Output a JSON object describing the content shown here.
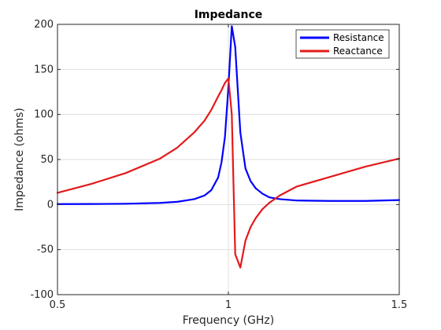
{
  "chart_data": {
    "type": "line",
    "title": "Impedance",
    "xlabel": "Frequency (GHz)",
    "ylabel": "Impedance (ohms)",
    "xlim": [
      0.5,
      1.5
    ],
    "ylim": [
      -100,
      200
    ],
    "xticks": [
      0.5,
      1,
      1.5
    ],
    "xtick_labels": [
      "0.5",
      "1",
      "1.5"
    ],
    "yticks": [
      -100,
      -50,
      0,
      50,
      100,
      150,
      200
    ],
    "ytick_labels": [
      "-100",
      "-50",
      "0",
      "50",
      "100",
      "150",
      "200"
    ],
    "grid": true,
    "legend_position": "top-right",
    "series": [
      {
        "name": "Resistance",
        "color": "#0000ff",
        "x": [
          0.5,
          0.6,
          0.7,
          0.8,
          0.85,
          0.9,
          0.93,
          0.95,
          0.97,
          0.98,
          0.99,
          1.0,
          1.01,
          1.02,
          1.035,
          1.05,
          1.065,
          1.08,
          1.1,
          1.12,
          1.15,
          1.2,
          1.3,
          1.4,
          1.5
        ],
        "y": [
          0.5,
          0.6,
          0.9,
          1.8,
          3,
          6,
          10,
          16,
          30,
          47,
          75,
          130,
          198,
          175,
          80,
          40,
          26,
          18,
          12,
          8,
          6,
          4.5,
          4,
          4,
          5
        ]
      },
      {
        "name": "Reactance",
        "color": "#e31a1c",
        "x": [
          0.5,
          0.6,
          0.7,
          0.8,
          0.85,
          0.9,
          0.93,
          0.95,
          0.97,
          0.98,
          0.99,
          1.0,
          1.01,
          1.02,
          1.035,
          1.05,
          1.065,
          1.08,
          1.1,
          1.12,
          1.15,
          1.2,
          1.3,
          1.4,
          1.5
        ],
        "y": [
          13,
          23,
          35,
          51,
          63,
          80,
          93,
          105,
          120,
          127,
          135,
          140,
          100,
          -55,
          -70,
          -40,
          -25,
          -15,
          -5,
          2,
          10,
          20,
          31,
          42,
          51
        ]
      }
    ]
  }
}
